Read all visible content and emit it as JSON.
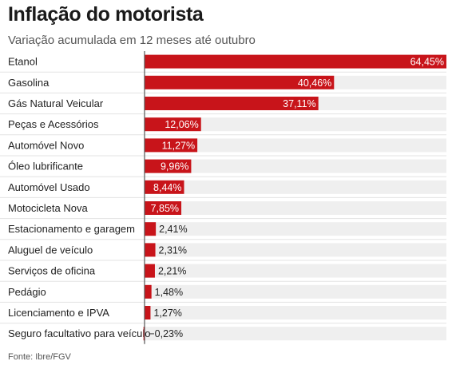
{
  "title": "Inflação do motorista",
  "subtitle": "Variação acumulada em 12 meses até outubro",
  "source": "Fonte: Ibre/FGV",
  "colors": {
    "bar": "#c8141a",
    "track": "#efefef",
    "axis": "#555555",
    "divider": "#e3e3e3"
  },
  "chart_data": {
    "type": "bar",
    "orientation": "horizontal",
    "title": "Inflação do motorista",
    "subtitle": "Variação acumulada em 12 meses até outubro",
    "xlim": [
      -0.23,
      64.45
    ],
    "grid": false,
    "categories": [
      "Etanol",
      "Gasolina",
      "Gás Natural Veicular",
      "Peças e Acessórios",
      "Automóvel Novo",
      "Óleo lubrificante",
      "Automóvel Usado",
      "Motocicleta Nova",
      "Estacionamento e garagem",
      "Aluguel de veículo",
      "Serviços de oficina",
      "Pedágio",
      "Licenciamento e IPVA",
      "Seguro facultativo para veículo"
    ],
    "values": [
      64.45,
      40.46,
      37.11,
      12.06,
      11.27,
      9.96,
      8.44,
      7.85,
      2.41,
      2.31,
      2.21,
      1.48,
      1.27,
      -0.23
    ],
    "value_labels": [
      "64,45%",
      "40,46%",
      "37,11%",
      "12,06%",
      "11,27%",
      "9,96%",
      "8,44%",
      "7,85%",
      "2,41%",
      "2,31%",
      "2,21%",
      "1,48%",
      "1,27%",
      "−0,23%"
    ]
  }
}
